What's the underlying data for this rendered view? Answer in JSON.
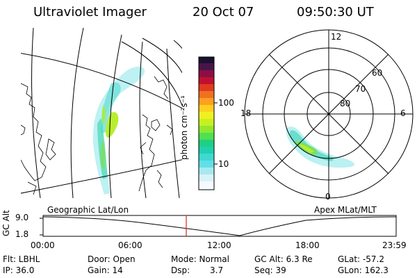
{
  "header": {
    "instrument": "Ultraviolet Imager",
    "date": "20 Oct 07",
    "time": "09:50:30 UT"
  },
  "colorbar": {
    "unit_label": "photon cm⁻²s⁻¹",
    "ticks": [
      "100",
      "10"
    ],
    "colors": [
      "#1a1030",
      "#5a1a5a",
      "#a01040",
      "#d02020",
      "#f05020",
      "#ff9a20",
      "#ffd020",
      "#f0f020",
      "#b8f020",
      "#60e040",
      "#20d080",
      "#40d8d0",
      "#a8e8f0",
      "#f0f8ff"
    ]
  },
  "panels": {
    "left_label": "Geographic Lat/Lon",
    "right_label": "Apex MLat/MLT"
  },
  "polar": {
    "mlt_labels": {
      "top": "12",
      "right": "6",
      "bottom": "0",
      "left": "18"
    },
    "mlat_labels": [
      "60",
      "70",
      "80"
    ]
  },
  "altitude_plot": {
    "ylabel": "GC Alt",
    "yticks": [
      "9.0",
      "1.8"
    ],
    "xticks": [
      "00:00",
      "06:00",
      "12:00",
      "18:00",
      "23:59"
    ],
    "marker_color": "#e02020"
  },
  "info": {
    "row1": {
      "filter": "Flt: LBHL",
      "door": "Door: Open",
      "mode": "Mode: Normal",
      "gc_alt": "GC Alt: 6.3 Re",
      "glat": "GLat: -57.2"
    },
    "row2": {
      "ip": "IP: 36.0",
      "gain": "Gain: 14",
      "dsp_label": "Dsp:",
      "dsp_value": "3.7",
      "seq": "Seq: 39",
      "glon": "GLon: 162.3"
    }
  }
}
